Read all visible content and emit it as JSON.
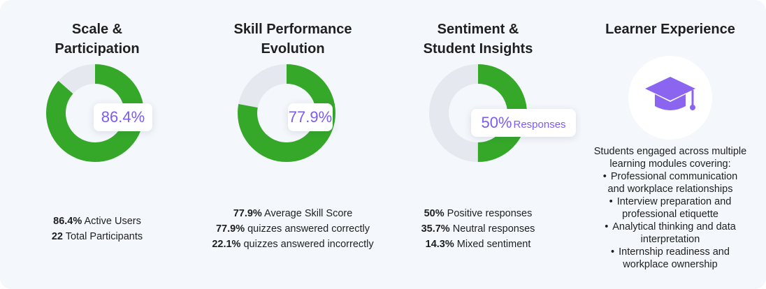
{
  "columns": [
    {
      "title": "Scale &\nParticipation",
      "badge": "86.4%",
      "badge_unit": "",
      "stats": [
        {
          "bold": "86.4%",
          "text": " Active Users"
        },
        {
          "bold": "22",
          "text": " Total Participants"
        }
      ]
    },
    {
      "title": "Skill Performance\nEvolution",
      "badge": "77.9%",
      "badge_unit": "",
      "stats": [
        {
          "bold": "77.9%",
          "text": " Average Skill Score"
        },
        {
          "bold": "77.9%",
          "text": " quizzes answered correctly"
        },
        {
          "bold": "22.1%",
          "text": " quizzes answered incorrectly"
        }
      ]
    },
    {
      "title": "Sentiment &\nStudent Insights",
      "badge": "50%",
      "badge_unit": "Responses",
      "stats": [
        {
          "bold": "50%",
          "text": " Positive responses"
        },
        {
          "bold": "35.7%",
          "text": " Neutral responses"
        },
        {
          "bold": "14.3%",
          "text": " Mixed sentiment"
        }
      ]
    }
  ],
  "learner": {
    "title": "Learner Experience",
    "icon": "graduation-cap-icon",
    "intro": "Students engaged across multiple\nlearning modules covering:",
    "bullets": [
      "Professional communication\nand workplace relationships",
      "Interview preparation and\nprofessional etiquette",
      "Analytical thinking and data\ninterpretation",
      "Internship readiness and\nworkplace ownership"
    ],
    "bullet_glyph": "•"
  },
  "colors": {
    "filled": "#35a829",
    "empty": "#e5e8ee",
    "accent": "#7b5cf0",
    "cap": "#8b64f0"
  },
  "chart_data": [
    {
      "type": "pie",
      "donut": true,
      "values": [
        86.4,
        13.6
      ],
      "label": "86.4%"
    },
    {
      "type": "pie",
      "donut": true,
      "values": [
        77.9,
        22.1
      ],
      "label": "77.9%"
    },
    {
      "type": "pie",
      "donut": true,
      "values": [
        50,
        50
      ],
      "label": "50% Responses"
    }
  ]
}
